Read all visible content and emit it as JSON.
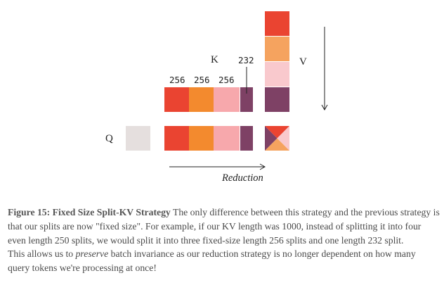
{
  "diagram": {
    "labels": {
      "k": "K",
      "v": "V",
      "q": "Q",
      "reduction": "Reduction"
    },
    "split_sizes": [
      "256",
      "256",
      "256",
      "232"
    ],
    "colors": {
      "red": "#EA4431",
      "orange": "#F38A2E",
      "pink": "#F7A8AC",
      "light_pink": "#F9C9CD",
      "light_orange": "#F5A35F",
      "plum": "#7E4165",
      "q_gray": "#E5DFDE"
    }
  },
  "caption": {
    "title": "Figure 15: Fixed Size Split-KV Strategy",
    "text_before_em": " The only difference between this strategy and the previous strategy is that our splits are now \"fixed size\". For example, if our KV length was 1000, instead of splitting it into four even length 250 splits, we would split it into three fixed-size length 256 splits and one length 232 split.",
    "line2_before_em": "This allows us to ",
    "em": "preserve",
    "line2_after_em": " batch invariance as our reduction strategy is no longer dependent on how many query tokens we're processing at once!"
  }
}
